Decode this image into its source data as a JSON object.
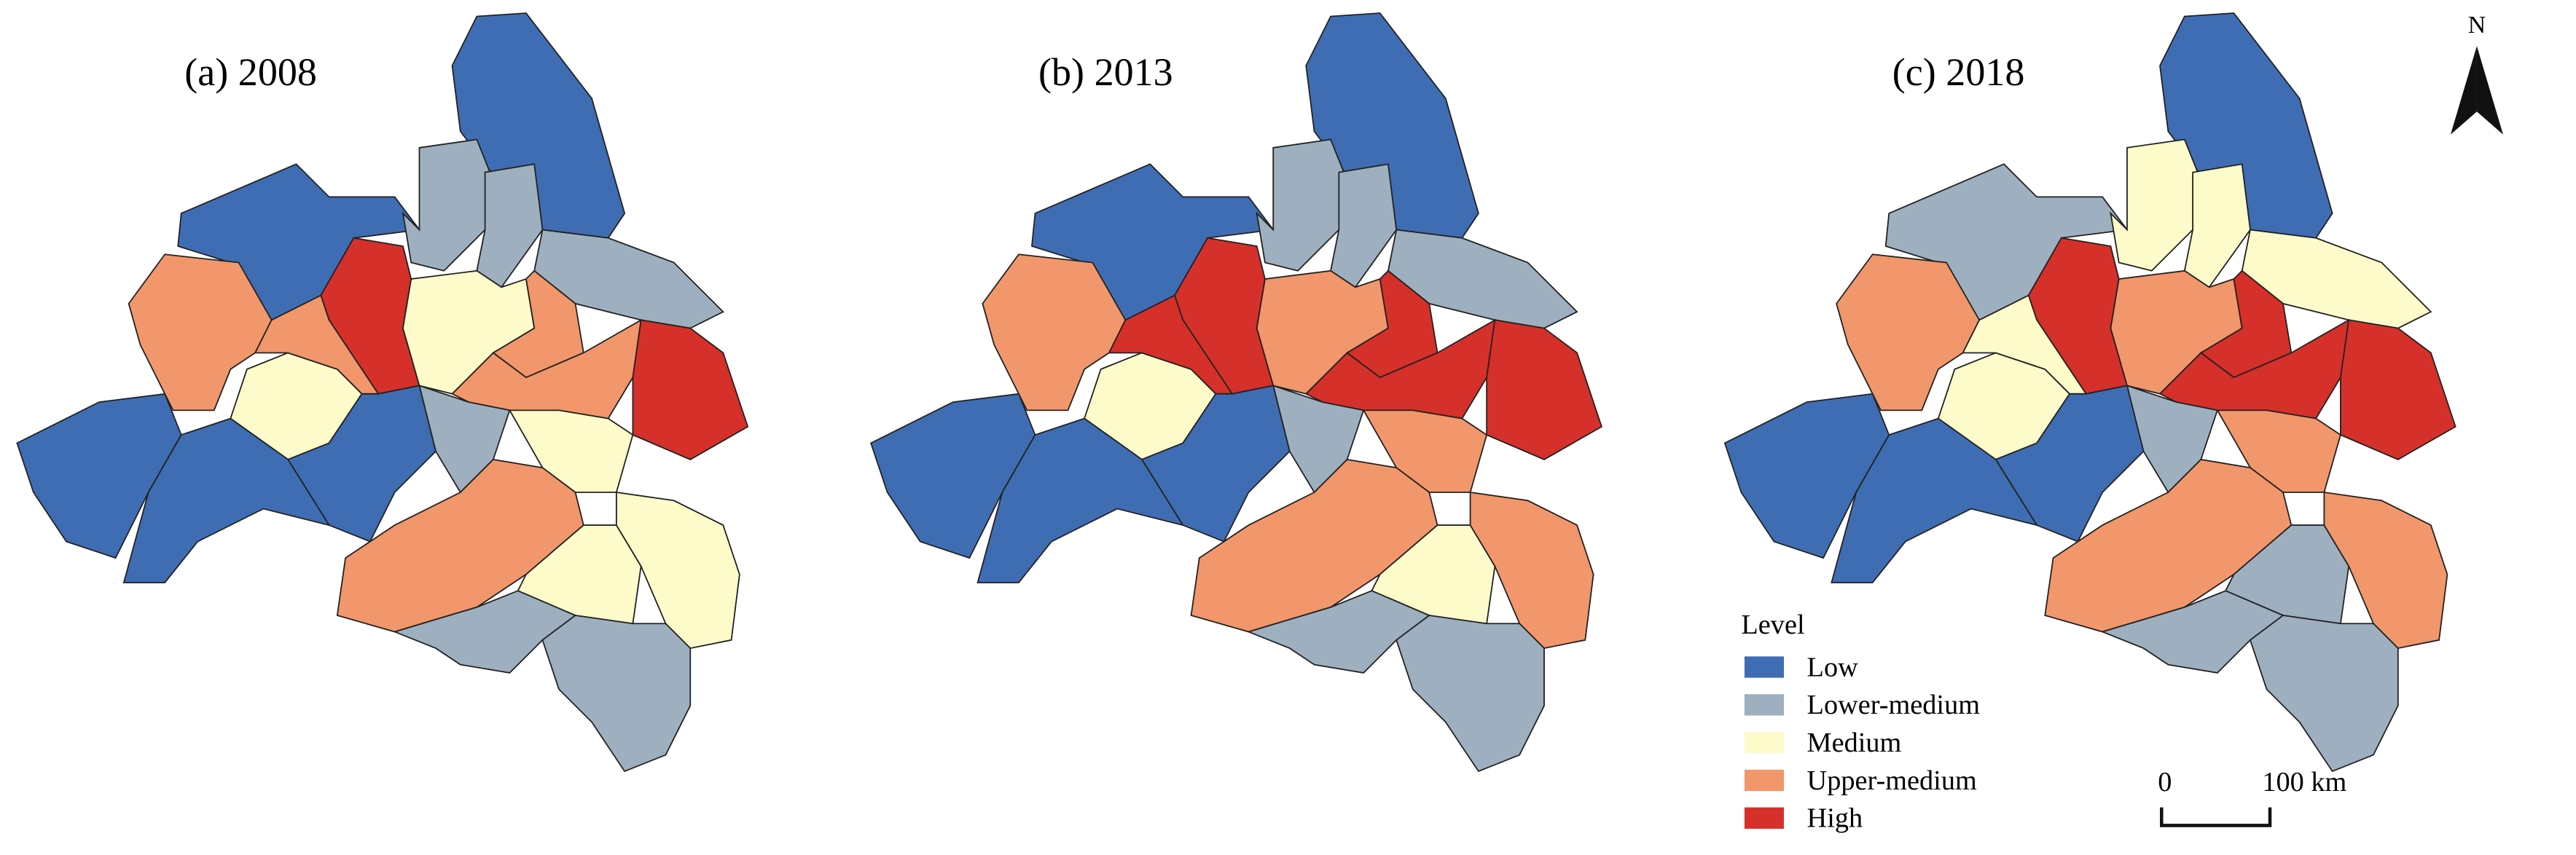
{
  "panels": [
    {
      "title": "(a) 2008",
      "regions": [
        "Low",
        "Low",
        "Lower-medium",
        "Lower-medium",
        "Lower-medium",
        "High",
        "Upper-medium",
        "Medium",
        "Upper-medium",
        "Medium",
        "Upper-medium",
        "Upper-medium",
        "High",
        "Lower-medium",
        "Low",
        "Low",
        "Low",
        "Medium",
        "Upper-medium",
        "Medium",
        "Medium",
        "Lower-medium",
        "Lower-medium"
      ]
    },
    {
      "title": "(b) 2013",
      "regions": [
        "Low",
        "Low",
        "Lower-medium",
        "Lower-medium",
        "Lower-medium",
        "High",
        "Upper-medium",
        "Medium",
        "High",
        "Upper-medium",
        "High",
        "High",
        "High",
        "Lower-medium",
        "Low",
        "Low",
        "Low",
        "Upper-medium",
        "Upper-medium",
        "Medium",
        "Upper-medium",
        "Lower-medium",
        "Lower-medium"
      ]
    },
    {
      "title": "(c) 2018",
      "regions": [
        "Low",
        "Lower-medium",
        "Medium",
        "Medium",
        "Medium",
        "High",
        "Upper-medium",
        "Medium",
        "Medium",
        "Upper-medium",
        "High",
        "High",
        "High",
        "Lower-medium",
        "Low",
        "Low",
        "Low",
        "Upper-medium",
        "Upper-medium",
        "Lower-medium",
        "Upper-medium",
        "Lower-medium",
        "Lower-medium"
      ]
    }
  ],
  "legend": {
    "title": "Level",
    "items": [
      {
        "label": "Low",
        "color": "#3f6db3"
      },
      {
        "label": "Lower-medium",
        "color": "#9eb0c0"
      },
      {
        "label": "Medium",
        "color": "#fdfbc9"
      },
      {
        "label": "Upper-medium",
        "color": "#f1976b"
      },
      {
        "label": "High",
        "color": "#d6302a"
      }
    ]
  },
  "north": "N",
  "scale_bar": {
    "start": "0",
    "end": "100 km"
  }
}
